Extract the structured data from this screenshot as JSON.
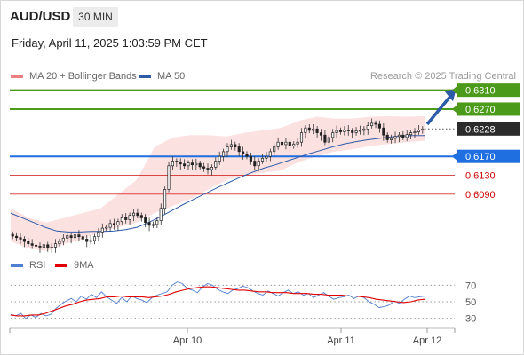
{
  "header": {
    "symbol": "AUD/USD",
    "timeframe": "30 MIN",
    "datetime": "Friday, April 11, 2025 1:03:59 PM CET",
    "credit": "Research © 2025 Trading Central"
  },
  "legend": {
    "main": [
      {
        "label": "MA 20 + Bollinger Bands",
        "color": "#f08080"
      },
      {
        "label": "MA 50",
        "color": "#2e5ba8"
      }
    ],
    "rsi": [
      {
        "label": "RSI",
        "color": "#4f7fd0"
      },
      {
        "label": "9MA",
        "color": "#e00000"
      }
    ]
  },
  "chart_data": [
    {
      "type": "candlestick",
      "x_tick_labels": [
        "Apr 10",
        "Apr 11",
        "Apr 12"
      ],
      "current_price": 0.6228,
      "levels": [
        {
          "value": 0.631,
          "label": "0.6310",
          "kind": "target",
          "color": "#4c9a1a"
        },
        {
          "value": 0.627,
          "label": "0.6270",
          "kind": "target",
          "color": "#4c9a1a"
        },
        {
          "value": 0.617,
          "label": "0.6170",
          "kind": "pivot",
          "color": "#1f6fe0"
        },
        {
          "value": 0.613,
          "label": "0.6130",
          "kind": "support",
          "color": "#cc0000"
        },
        {
          "value": 0.609,
          "label": "0.6090",
          "kind": "support",
          "color": "#cc0000"
        }
      ],
      "close_series": [
        0.6001,
        0.5998,
        0.5995,
        0.599,
        0.5985,
        0.5982,
        0.598,
        0.5978,
        0.5983,
        0.5976,
        0.5978,
        0.5985,
        0.599,
        0.5997,
        0.6002,
        0.5998,
        0.6004,
        0.6,
        0.5995,
        0.599,
        0.5992,
        0.6,
        0.601,
        0.6018,
        0.602,
        0.6028,
        0.6025,
        0.6032,
        0.604,
        0.6036,
        0.6045,
        0.605,
        0.6045,
        0.604,
        0.603,
        0.6024,
        0.6026,
        0.6034,
        0.606,
        0.61,
        0.615,
        0.616,
        0.6158,
        0.6154,
        0.615,
        0.6156,
        0.6152,
        0.6155,
        0.6148,
        0.6145,
        0.6142,
        0.6147,
        0.616,
        0.617,
        0.618,
        0.619,
        0.6195,
        0.619,
        0.618,
        0.6175,
        0.617,
        0.616,
        0.615,
        0.616,
        0.6166,
        0.617,
        0.618,
        0.619,
        0.62,
        0.6195,
        0.62,
        0.6192,
        0.6196,
        0.62,
        0.622,
        0.623,
        0.6225,
        0.6228,
        0.622,
        0.6215,
        0.62,
        0.621,
        0.622,
        0.6225,
        0.6222,
        0.6226,
        0.6224,
        0.622,
        0.6224,
        0.6225,
        0.6228,
        0.6235,
        0.624,
        0.6238,
        0.623,
        0.6215,
        0.6205,
        0.6208,
        0.6212,
        0.6215,
        0.621,
        0.6216,
        0.622,
        0.6222,
        0.6226,
        0.6228
      ],
      "ma50_series": [
        0.605,
        0.604,
        0.603,
        0.602,
        0.6012,
        0.601,
        0.601,
        0.6011,
        0.6011,
        0.6012,
        0.6015,
        0.602,
        0.603,
        0.6042,
        0.6055,
        0.6068,
        0.608,
        0.6092,
        0.6104,
        0.6115,
        0.6126,
        0.6136,
        0.6145,
        0.6152,
        0.616,
        0.6168,
        0.6176,
        0.6183,
        0.619,
        0.6196,
        0.6201,
        0.6205,
        0.6208,
        0.6211,
        0.6213,
        0.6214,
        0.6214
      ],
      "bollinger_upper": [
        0.606,
        0.604,
        0.603,
        0.604,
        0.605,
        0.606,
        0.609,
        0.612,
        0.619,
        0.621,
        0.6215,
        0.6215,
        0.6212,
        0.622,
        0.6225,
        0.623,
        0.6245,
        0.6254,
        0.625,
        0.625,
        0.6254,
        0.6255,
        0.6254,
        0.6255
      ],
      "bollinger_lower": [
        0.599,
        0.5975,
        0.597,
        0.5985,
        0.5995,
        0.601,
        0.602,
        0.603,
        0.605,
        0.6065,
        0.608,
        0.61,
        0.612,
        0.613,
        0.6135,
        0.614,
        0.6158,
        0.617,
        0.618,
        0.6185,
        0.6192,
        0.6196,
        0.62,
        0.6203
      ],
      "ylim": [
        0.596,
        0.633
      ]
    },
    {
      "type": "line",
      "indicator": "RSI",
      "y_tick_labels": [
        "70",
        "50",
        "30"
      ],
      "ylim": [
        20,
        80
      ],
      "series": [
        {
          "name": "RSI",
          "color": "#4f7fd0",
          "values": [
            35,
            33,
            36,
            30,
            34,
            31,
            36,
            33,
            35,
            42,
            47,
            51,
            54,
            50,
            57,
            53,
            59,
            55,
            62,
            56,
            52,
            48,
            55,
            50,
            57,
            54,
            52,
            49,
            55,
            58,
            60,
            62,
            70,
            74,
            72,
            66,
            64,
            61,
            68,
            72,
            70,
            65,
            62,
            60,
            64,
            66,
            69,
            67,
            63,
            60,
            58,
            63,
            60,
            57,
            61,
            64,
            60,
            62,
            58,
            60,
            55,
            58,
            61,
            57,
            53,
            55,
            56,
            58,
            54,
            57,
            55,
            50,
            47,
            43,
            44,
            46,
            51,
            48,
            53,
            57,
            55,
            56,
            57
          ]
        },
        {
          "name": "9MA",
          "color": "#e00000",
          "values": [
            34,
            33,
            33,
            34,
            34,
            36,
            39,
            42,
            45,
            47,
            50,
            52,
            53,
            54,
            56,
            56,
            57,
            56,
            56,
            56,
            55,
            56,
            57,
            59,
            62,
            64,
            66,
            67,
            68,
            68,
            67,
            66,
            65,
            64,
            64,
            63,
            62,
            62,
            61,
            61,
            61,
            60,
            60,
            60,
            59,
            59,
            58,
            58,
            58,
            57,
            57,
            56,
            55,
            53,
            52,
            51,
            50,
            49,
            50,
            52,
            53
          ]
        }
      ]
    }
  ]
}
